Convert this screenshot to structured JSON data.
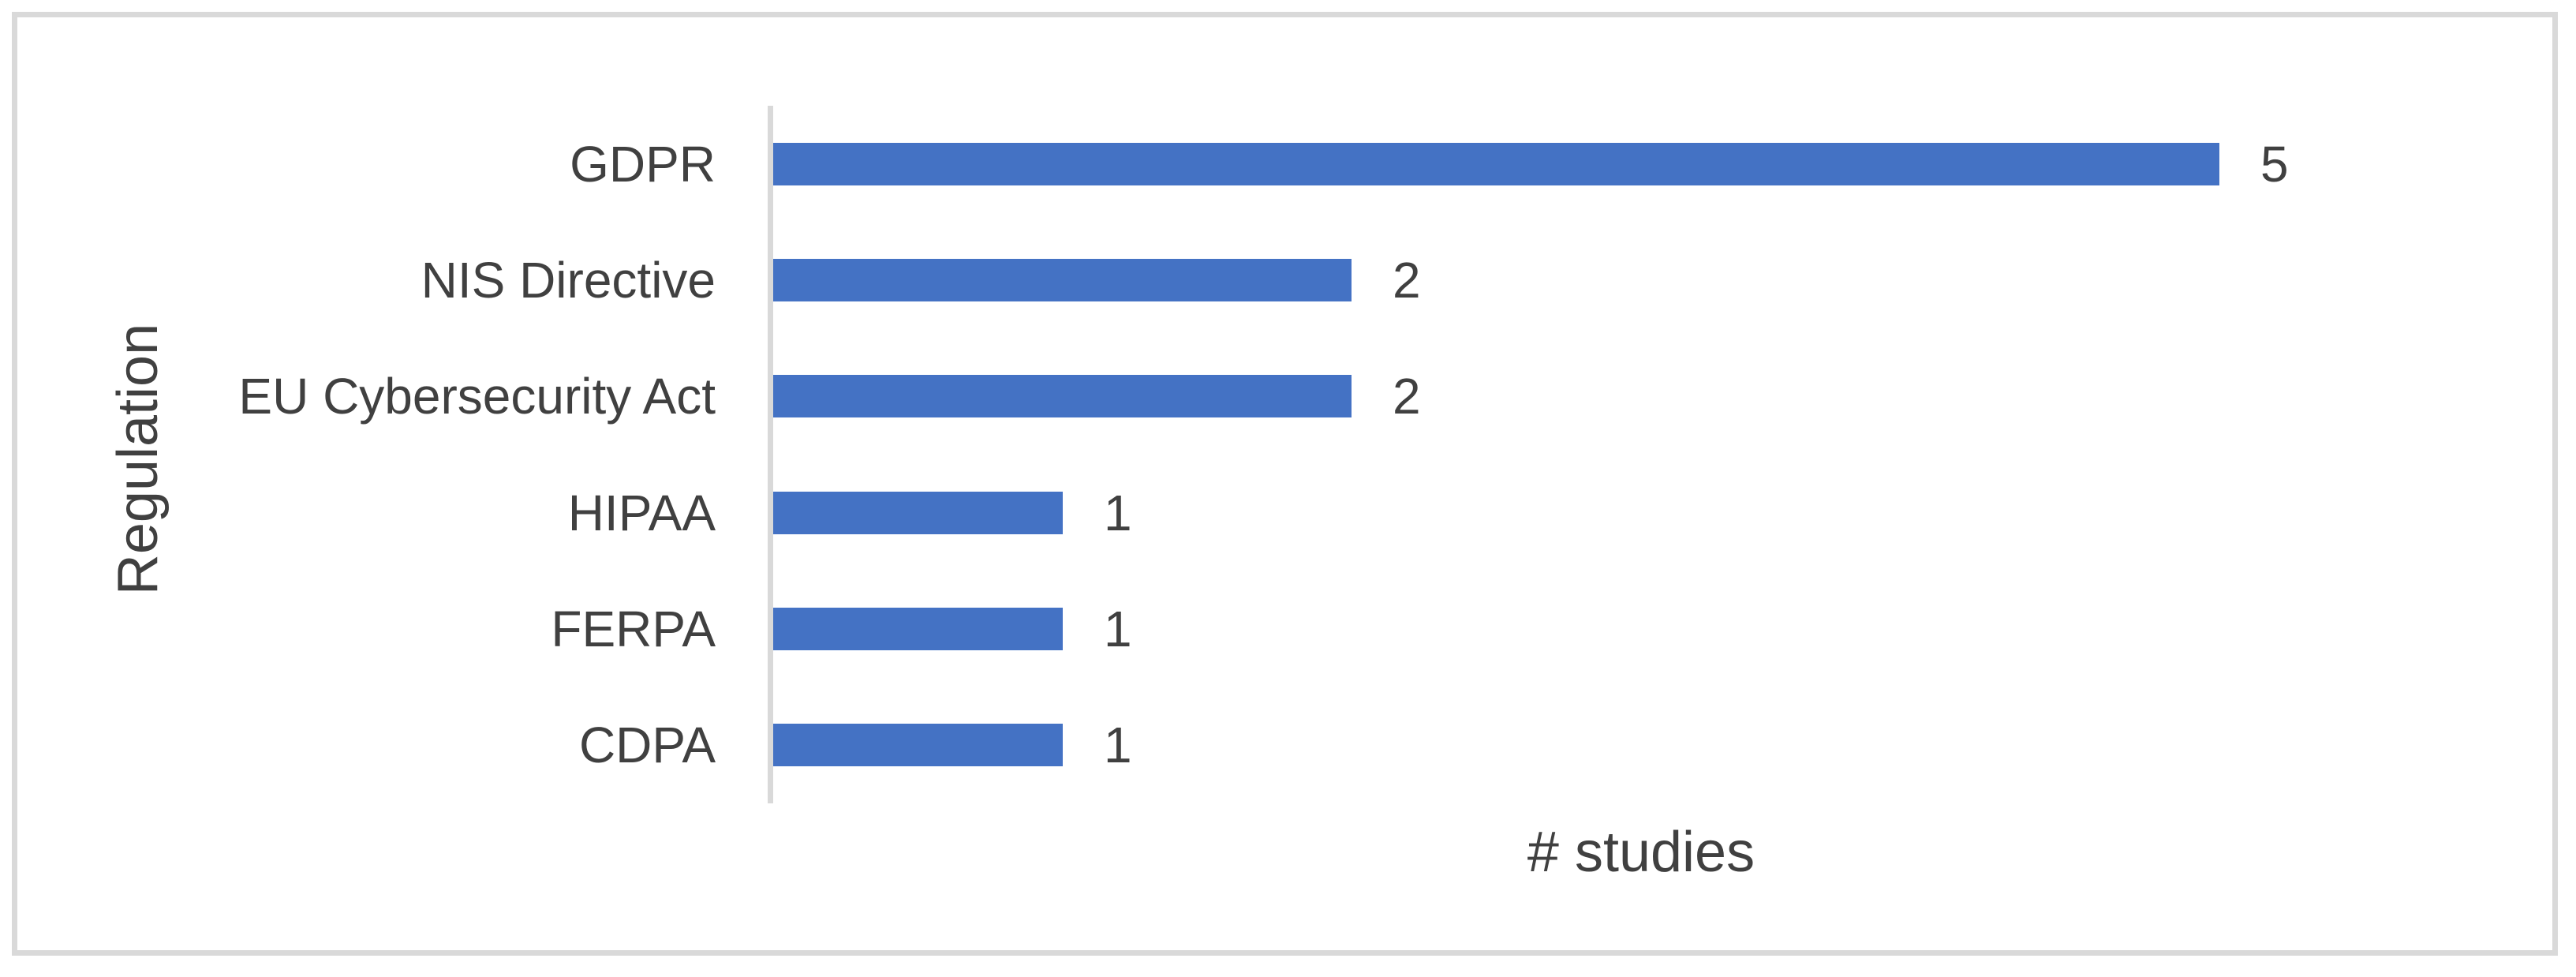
{
  "chart_data": {
    "type": "bar",
    "orientation": "horizontal",
    "title": "",
    "xlabel": "# studies",
    "ylabel": "Regulation",
    "categories": [
      "GDPR",
      "NIS Directive",
      "EU Cybersecurity Act",
      "HIPAA",
      "FERPA",
      "CDPA"
    ],
    "values": [
      5,
      2,
      2,
      1,
      1,
      1
    ],
    "data_labels": [
      "5",
      "2",
      "2",
      "1",
      "1",
      "1"
    ],
    "xlim": [
      0,
      5
    ],
    "grid": false,
    "legend": false,
    "bar_color": "#4472c4",
    "axis_line_color": "#d9d9d9",
    "frame_color": "#d9d9d9",
    "text_color": "#404040"
  }
}
